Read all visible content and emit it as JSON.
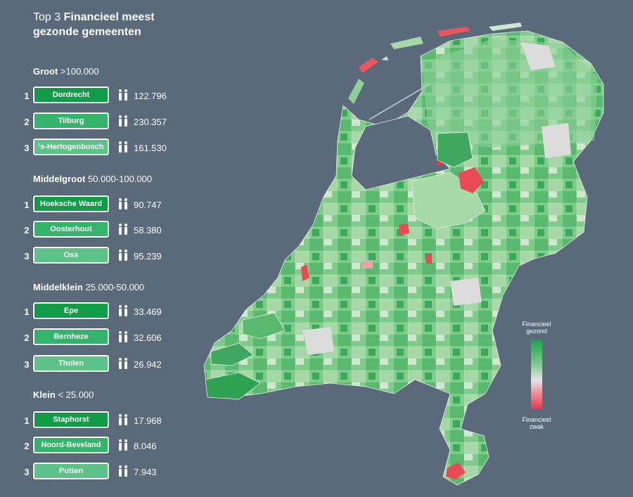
{
  "title": {
    "prefix": "Top 3",
    "bold": "Financieel meest gezonde gemeenten"
  },
  "categories": [
    {
      "name": "Groot",
      "range": ">100.000",
      "entries": [
        {
          "rank": "1",
          "name": "Dordrecht",
          "population": "122.796"
        },
        {
          "rank": "2",
          "name": "Tilburg",
          "population": "230.357"
        },
        {
          "rank": "3",
          "name": "'s-Hertogenbosch",
          "population": "161.530"
        }
      ]
    },
    {
      "name": "Middelgroot",
      "range": "50.000-100.000",
      "entries": [
        {
          "rank": "1",
          "name": "Hoeksche Waard",
          "population": "90.747"
        },
        {
          "rank": "2",
          "name": "Oosterhout",
          "population": "58.380"
        },
        {
          "rank": "3",
          "name": "Oss",
          "population": "95.239"
        }
      ]
    },
    {
      "name": "Middelklein",
      "range": "25.000-50.000",
      "entries": [
        {
          "rank": "1",
          "name": "Epe",
          "population": "33.469"
        },
        {
          "rank": "2",
          "name": "Bernheze",
          "population": "32.606"
        },
        {
          "rank": "3",
          "name": "Tholen",
          "population": "26.942"
        }
      ]
    },
    {
      "name": "Klein",
      "range": "< 25.000",
      "entries": [
        {
          "rank": "1",
          "name": "Staphorst",
          "population": "17.968"
        },
        {
          "rank": "2",
          "name": "Noord-Beveland",
          "population": "8.046"
        },
        {
          "rank": "3",
          "name": "Putten",
          "population": "7.943"
        }
      ]
    }
  ],
  "legend": {
    "top": "Financieel gezond",
    "bottom": "Financieel zwak"
  },
  "colors": {
    "background": "#5a6a7a",
    "healthy_dark": "#1ea34f",
    "healthy_light": "#9fd8a4",
    "neutral": "#dcdcdc",
    "weak_light": "#f28a92",
    "weak": "#e83745"
  },
  "icons": {
    "population": "people-icon"
  }
}
